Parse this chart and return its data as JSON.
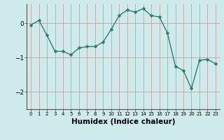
{
  "x": [
    0,
    1,
    2,
    3,
    4,
    5,
    6,
    7,
    8,
    9,
    10,
    11,
    12,
    13,
    14,
    15,
    16,
    17,
    18,
    19,
    20,
    21,
    22,
    23
  ],
  "y": [
    -0.05,
    0.08,
    -0.35,
    -0.82,
    -0.82,
    -0.92,
    -0.72,
    -0.68,
    -0.68,
    -0.55,
    -0.18,
    0.22,
    0.38,
    0.32,
    0.42,
    0.22,
    0.18,
    -0.28,
    -1.25,
    -1.38,
    -1.9,
    -1.08,
    -1.05,
    -1.18
  ],
  "line_color": "#2e7d6e",
  "marker": "D",
  "marker_size": 2.5,
  "linewidth": 1.0,
  "xlabel": "Humidex (Indice chaleur)",
  "xlabel_fontsize": 7.5,
  "xlabel_bold": true,
  "yticks": [
    -2,
    -1,
    0
  ],
  "ytick_fontsize": 6.5,
  "xtick_labels": [
    "0",
    "1",
    "2",
    "3",
    "4",
    "5",
    "6",
    "7",
    "8",
    "9",
    "10",
    "11",
    "12",
    "13",
    "14",
    "15",
    "16",
    "17",
    "18",
    "19",
    "20",
    "21",
    "22",
    "23"
  ],
  "xtick_fontsize": 5.0,
  "ylim": [
    -2.5,
    0.55
  ],
  "xlim": [
    -0.5,
    23.5
  ],
  "bg_color": "#ceeaea",
  "grid_color": "#c8a0a0",
  "spine_color": "#555555"
}
